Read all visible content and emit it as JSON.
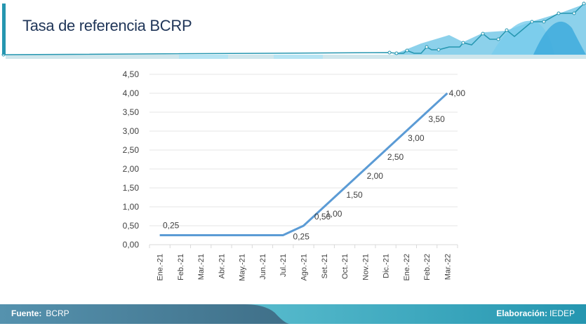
{
  "header": {
    "title": "Tasa de referencia BCRP"
  },
  "footer": {
    "source_label": "Fuente:",
    "source": "BCRP",
    "credit_label": "Elaboración:",
    "credit": "IEDEP"
  },
  "colors": {
    "line": "#5b9bd5",
    "title": "#1f3558",
    "accent": "#2596b0"
  },
  "chart_data": {
    "type": "line",
    "title": "Tasa de referencia BCRP",
    "categories": [
      "Ene.-21",
      "Feb.-21",
      "Mar.-21",
      "Abr.-21",
      "May.-21",
      "Jun.-21",
      "Jul.-21",
      "Ago.-21",
      "Set.-21",
      "Oct.-21",
      "Nov.-21",
      "Dic.-21",
      "Ene.-22",
      "Feb.-22",
      "Mar.-22"
    ],
    "series": [
      {
        "name": "Tasa de referencia",
        "values": [
          0.25,
          0.25,
          0.25,
          0.25,
          0.25,
          0.25,
          0.25,
          0.5,
          1.0,
          1.5,
          2.0,
          2.5,
          3.0,
          3.5,
          4.0
        ]
      }
    ],
    "data_labels": [
      {
        "index": 0,
        "text": "0,25"
      },
      {
        "index": 6,
        "text": "0,25"
      },
      {
        "index": 7,
        "text": "0,50"
      },
      {
        "index": 8,
        "text": "1,00"
      },
      {
        "index": 9,
        "text": "1,50"
      },
      {
        "index": 10,
        "text": "2,00"
      },
      {
        "index": 11,
        "text": "2,50"
      },
      {
        "index": 12,
        "text": "3,00"
      },
      {
        "index": 13,
        "text": "3,50"
      },
      {
        "index": 14,
        "text": "4,00"
      }
    ],
    "yticks": [
      "0,00",
      "0,50",
      "1,00",
      "1,50",
      "2,00",
      "2,50",
      "3,00",
      "3,50",
      "4,00",
      "4,50"
    ],
    "ylim": [
      0,
      4.5
    ],
    "grid": true,
    "xlabel": "",
    "ylabel": ""
  }
}
